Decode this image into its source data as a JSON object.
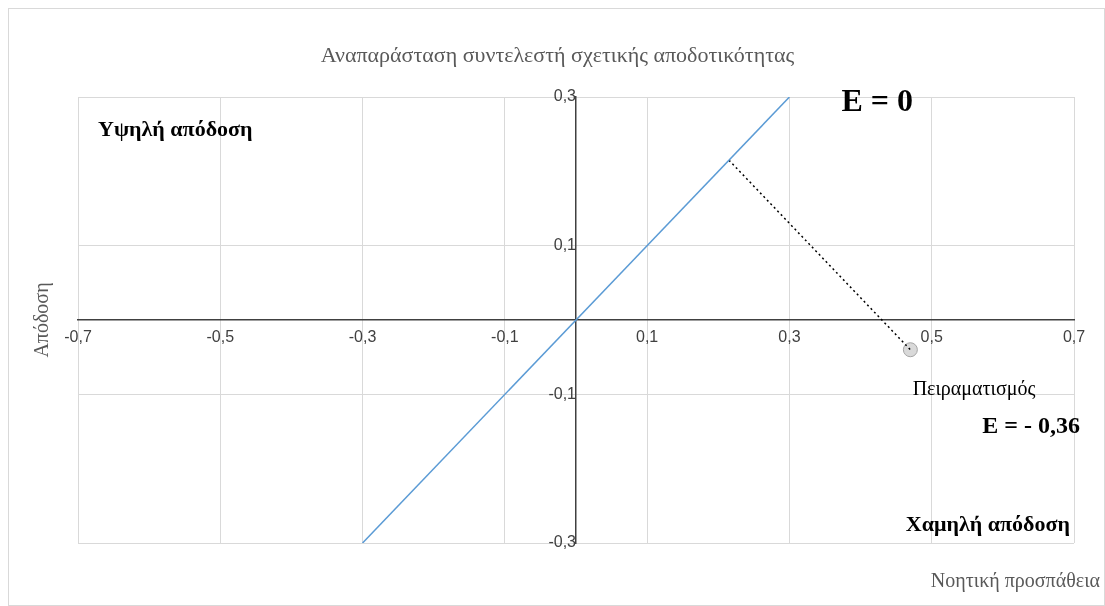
{
  "chart_data": {
    "type": "line",
    "title": "Αναπαράσταση συντελεστή σχετικής αποδοτικότητας",
    "xlabel": "Νοητική προσπάθεια",
    "ylabel": "Απόδοση",
    "xlim": [
      -0.7,
      0.7
    ],
    "ylim": [
      -0.3,
      0.3
    ],
    "xticks": [
      {
        "value": -0.7,
        "label": "-0,7"
      },
      {
        "value": -0.5,
        "label": "-0,5"
      },
      {
        "value": -0.3,
        "label": "-0,3"
      },
      {
        "value": -0.1,
        "label": "-0,1"
      },
      {
        "value": 0.1,
        "label": "0,1"
      },
      {
        "value": 0.3,
        "label": "0,3"
      },
      {
        "value": 0.5,
        "label": "0,5"
      },
      {
        "value": 0.7,
        "label": "0,7"
      }
    ],
    "yticks": [
      {
        "value": -0.3,
        "label": "-0,3"
      },
      {
        "value": -0.1,
        "label": "-0,1"
      },
      {
        "value": 0.1,
        "label": "0,1"
      },
      {
        "value": 0.3,
        "label": "0,3"
      }
    ],
    "grid": true,
    "legend": false,
    "series": [
      {
        "type": "line",
        "color": "#5b9bd5",
        "x": [
          -0.3,
          0.3
        ],
        "values": [
          -0.3,
          0.3
        ],
        "marker": "none",
        "line_style": "solid"
      },
      {
        "type": "line",
        "color": "#000000",
        "x": [
          0.215,
          0.47
        ],
        "values": [
          0.215,
          -0.04
        ],
        "marker": "none",
        "line_style": "dotted"
      },
      {
        "type": "scatter",
        "color": "#d9d9d9",
        "x": [
          0.47
        ],
        "values": [
          -0.04
        ],
        "marker": "circle"
      }
    ],
    "annotations": [
      "Υψηλή απόδοση",
      "Χαμηλή απόδοση",
      "E = 0",
      "Πειραματισμός",
      "E = - 0,36"
    ]
  }
}
